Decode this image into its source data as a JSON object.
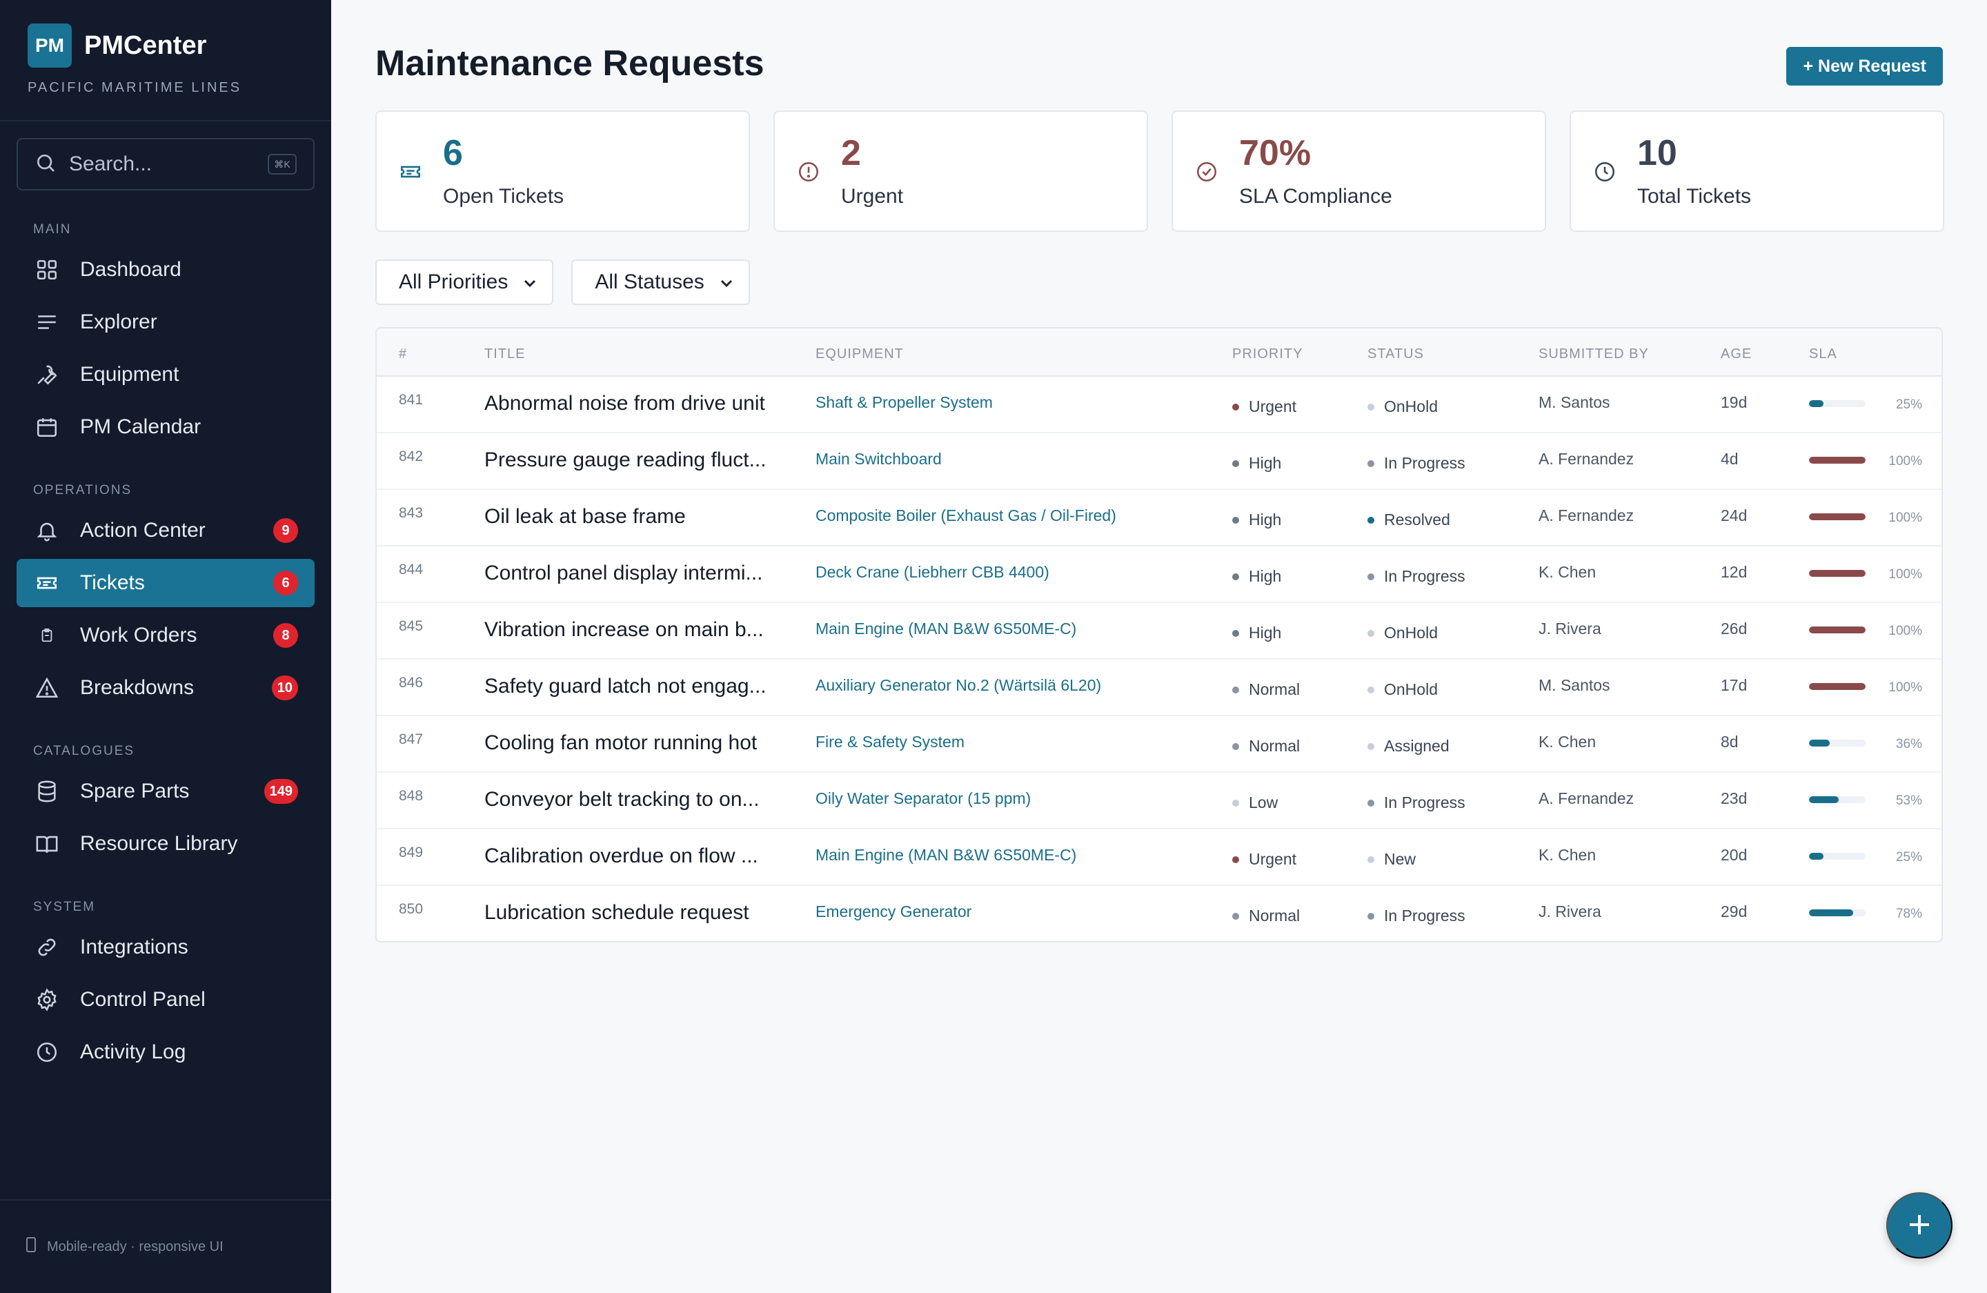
{
  "brand": {
    "logo": "PM",
    "name": "PMCenter",
    "subtitle": "PACIFIC MARITIME LINES"
  },
  "search": {
    "placeholder": "Search...",
    "shortcut": "⌘K"
  },
  "sidebar": {
    "sections": [
      {
        "label": "MAIN",
        "items": [
          {
            "label": "Dashboard",
            "icon": "grid-icon"
          },
          {
            "label": "Explorer",
            "icon": "list-icon"
          },
          {
            "label": "Equipment",
            "icon": "wrench-icon"
          },
          {
            "label": "PM Calendar",
            "icon": "calendar-icon"
          }
        ]
      },
      {
        "label": "OPERATIONS",
        "items": [
          {
            "label": "Action Center",
            "icon": "bell-icon",
            "badge": "9"
          },
          {
            "label": "Tickets",
            "icon": "ticket-icon",
            "badge": "6",
            "active": true
          },
          {
            "label": "Work Orders",
            "icon": "clipboard-icon",
            "badge": "8"
          },
          {
            "label": "Breakdowns",
            "icon": "warning-icon",
            "badge": "10"
          }
        ]
      },
      {
        "label": "CATALOGUES",
        "items": [
          {
            "label": "Spare Parts",
            "icon": "database-icon",
            "badge": "149"
          },
          {
            "label": "Resource Library",
            "icon": "book-icon"
          }
        ]
      },
      {
        "label": "SYSTEM",
        "items": [
          {
            "label": "Integrations",
            "icon": "link-icon"
          },
          {
            "label": "Control Panel",
            "icon": "gear-icon"
          },
          {
            "label": "Activity Log",
            "icon": "clock-icon"
          }
        ]
      }
    ],
    "footer": "Mobile-ready · responsive UI"
  },
  "header": {
    "title": "Maintenance Requests",
    "new_button": "+ New Request"
  },
  "stats": [
    {
      "value": "6",
      "label": "Open Tickets",
      "color": "#1a6e8a",
      "icon": "ticket-icon"
    },
    {
      "value": "2",
      "label": "Urgent",
      "color": "#8a4a4a",
      "icon": "alert-circle-icon"
    },
    {
      "value": "70%",
      "label": "SLA Compliance",
      "color": "#8a4a4a",
      "icon": "check-circle-icon"
    },
    {
      "value": "10",
      "label": "Total Tickets",
      "color": "#3a4454",
      "icon": "clock-icon"
    }
  ],
  "filters": {
    "priority": "All Priorities",
    "status": "All Statuses"
  },
  "table": {
    "columns": [
      "#",
      "TITLE",
      "EQUIPMENT",
      "PRIORITY",
      "STATUS",
      "SUBMITTED BY",
      "AGE",
      "SLA"
    ],
    "rows": [
      {
        "id": "841",
        "title": "Abnormal noise from drive unit",
        "equipment": "Shaft & Propeller System",
        "priority": "Urgent",
        "status": "OnHold",
        "by": "M. Santos",
        "age": "19d",
        "sla": 25,
        "sla_label": "25%"
      },
      {
        "id": "842",
        "title": "Pressure gauge reading fluct...",
        "equipment": "Main Switchboard",
        "priority": "High",
        "status": "In Progress",
        "by": "A. Fernandez",
        "age": "4d",
        "sla": 100,
        "sla_label": "100%"
      },
      {
        "id": "843",
        "title": "Oil leak at base frame",
        "equipment": "Composite Boiler (Exhaust Gas / Oil-Fired)",
        "priority": "High",
        "status": "Resolved",
        "by": "A. Fernandez",
        "age": "24d",
        "sla": 100,
        "sla_label": "100%"
      },
      {
        "id": "844",
        "title": "Control panel display intermi...",
        "equipment": "Deck Crane (Liebherr CBB 4400)",
        "priority": "High",
        "status": "In Progress",
        "by": "K. Chen",
        "age": "12d",
        "sla": 100,
        "sla_label": "100%"
      },
      {
        "id": "845",
        "title": "Vibration increase on main b...",
        "equipment": "Main Engine (MAN B&W 6S50ME-C)",
        "priority": "High",
        "status": "OnHold",
        "by": "J. Rivera",
        "age": "26d",
        "sla": 100,
        "sla_label": "100%"
      },
      {
        "id": "846",
        "title": "Safety guard latch not engag...",
        "equipment": "Auxiliary Generator No.2 (Wärtsilä 6L20)",
        "priority": "Normal",
        "status": "OnHold",
        "by": "M. Santos",
        "age": "17d",
        "sla": 100,
        "sla_label": "100%"
      },
      {
        "id": "847",
        "title": "Cooling fan motor running hot",
        "equipment": "Fire & Safety System",
        "priority": "Normal",
        "status": "Assigned",
        "by": "K. Chen",
        "age": "8d",
        "sla": 36,
        "sla_label": "36%"
      },
      {
        "id": "848",
        "title": "Conveyor belt tracking to on...",
        "equipment": "Oily Water Separator (15 ppm)",
        "priority": "Low",
        "status": "In Progress",
        "by": "A. Fernandez",
        "age": "23d",
        "sla": 53,
        "sla_label": "53%"
      },
      {
        "id": "849",
        "title": "Calibration overdue on flow ...",
        "equipment": "Main Engine (MAN B&W 6S50ME-C)",
        "priority": "Urgent",
        "status": "New",
        "by": "K. Chen",
        "age": "20d",
        "sla": 25,
        "sla_label": "25%"
      },
      {
        "id": "850",
        "title": "Lubrication schedule request",
        "equipment": "Emergency Generator",
        "priority": "Normal",
        "status": "In Progress",
        "by": "J. Rivera",
        "age": "29d",
        "sla": 78,
        "sla_label": "78%"
      }
    ]
  },
  "colors": {
    "accent": "#1a7394",
    "danger": "#e0242e",
    "priority": {
      "Urgent": "#8a4a4a",
      "High": "#707a8a",
      "Normal": "#8a94a4",
      "Low": "#c7ced8"
    },
    "status": {
      "Resolved": "#1a6e8a",
      "In Progress": "#8a94a4",
      "OnHold": "#c7ced8",
      "Assigned": "#c7ced8",
      "New": "#c7ced8"
    },
    "sla_full": "#8a4a4a",
    "sla_partial": "#1a6e8a"
  }
}
